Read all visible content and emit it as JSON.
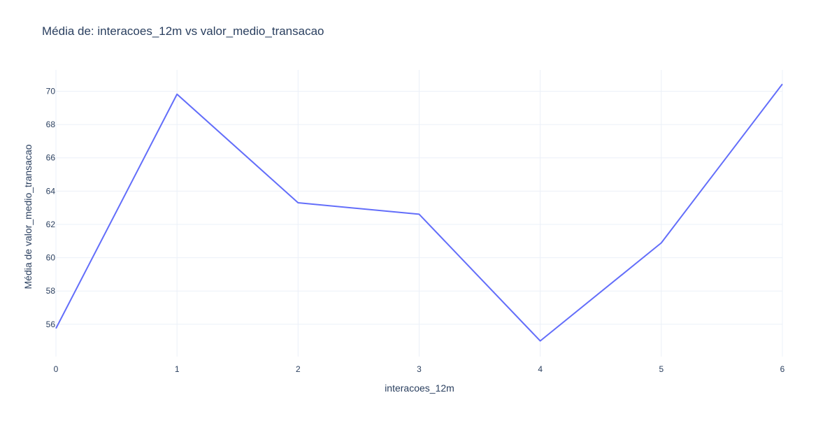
{
  "chart_data": {
    "type": "line",
    "title": "Média de: interacoes_12m vs valor_medio_transacao",
    "xlabel": "interacoes_12m",
    "ylabel": "Média de valor_medio_transacao",
    "x": [
      0,
      1,
      2,
      3,
      4,
      5,
      6
    ],
    "xlim": [
      0,
      6
    ],
    "ylim": [
      54.06,
      71.28
    ],
    "xticks": [
      "0",
      "1",
      "2",
      "3",
      "4",
      "5",
      "6"
    ],
    "xtick_values": [
      0,
      1,
      2,
      3,
      4,
      5,
      6
    ],
    "yticks": [
      "56",
      "58",
      "60",
      "62",
      "64",
      "66",
      "68",
      "70"
    ],
    "ytick_values": [
      56,
      58,
      60,
      62,
      64,
      66,
      68,
      70
    ],
    "grid": true,
    "series": [
      {
        "values": [
          55.75,
          69.82,
          63.3,
          62.61,
          55.0,
          60.89,
          70.43
        ],
        "color": "#636efa"
      }
    ]
  }
}
